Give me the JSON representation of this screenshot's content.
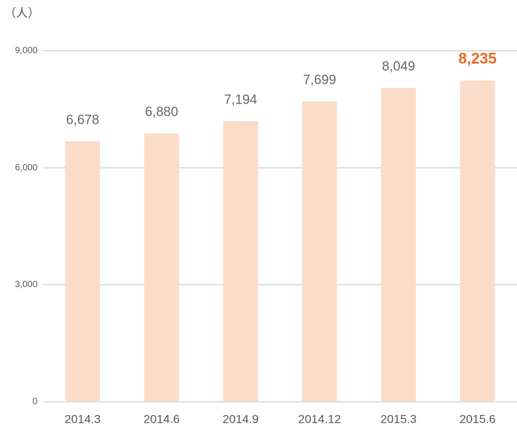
{
  "chart_data": {
    "type": "bar",
    "y_label": "（人）",
    "categories": [
      "2014.3",
      "2014.6",
      "2014.9",
      "2014.12",
      "2015.3",
      "2015.6"
    ],
    "values": [
      6678,
      6880,
      7194,
      7699,
      8049,
      8235
    ],
    "value_labels": [
      "6,678",
      "6,880",
      "7,194",
      "7,699",
      "8,049",
      "8,235"
    ],
    "value_label_colors": [
      "#666666",
      "#666666",
      "#666666",
      "#666666",
      "#666666",
      "#e8692a"
    ],
    "value_label_weights": [
      "normal",
      "normal",
      "normal",
      "normal",
      "normal",
      "bold"
    ],
    "color": "#fbdcc8",
    "ylim": [
      0,
      9000
    ],
    "yticks": [
      0,
      {
        "value": 3000,
        "label": "3,000"
      },
      {
        "value": 6000,
        "label": "6,000"
      },
      {
        "value": 9000,
        "label": "9,000"
      }
    ],
    "grid": true
  }
}
